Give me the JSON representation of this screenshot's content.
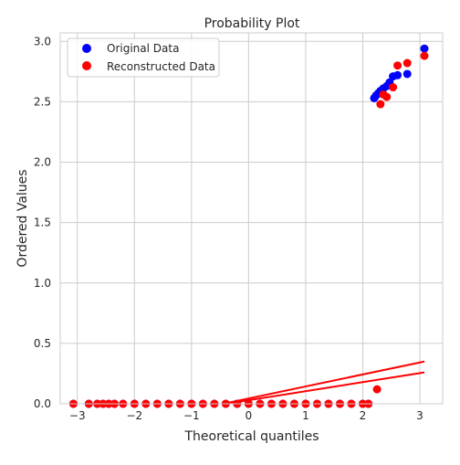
{
  "chart_data": {
    "type": "scatter",
    "title": "Probability Plot",
    "xlabel": "Theoretical quantiles",
    "ylabel": "Ordered Values",
    "xlim": [
      -3.3,
      3.4
    ],
    "ylim": [
      0,
      3.07
    ],
    "x_ticks": [
      -3,
      -2,
      -1,
      0,
      1,
      2,
      3
    ],
    "x_tick_labels": [
      "−3",
      "−2",
      "−1",
      "0",
      "1",
      "2",
      "3"
    ],
    "y_ticks": [
      0,
      0.5,
      1.0,
      1.5,
      2.0,
      2.5,
      3.0
    ],
    "y_tick_labels": [
      "0.0",
      "0.5",
      "1.0",
      "1.5",
      "2.0",
      "2.5",
      "3.0"
    ],
    "grid": true,
    "legend_position": "top-left",
    "series": [
      {
        "name": "Original Data",
        "color": "#0000ff",
        "points": [
          [
            -3.07,
            0.0
          ],
          [
            -2.8,
            0.0
          ],
          [
            -2.65,
            0.0
          ],
          [
            -2.55,
            0.0
          ],
          [
            -2.45,
            0.0
          ],
          [
            -2.35,
            0.0
          ],
          [
            -2.2,
            0.0
          ],
          [
            -2.0,
            0.0
          ],
          [
            -1.8,
            0.0
          ],
          [
            -1.6,
            0.0
          ],
          [
            -1.4,
            0.0
          ],
          [
            -1.2,
            0.0
          ],
          [
            -1.0,
            0.0
          ],
          [
            -0.8,
            0.0
          ],
          [
            -0.6,
            0.0
          ],
          [
            -0.4,
            0.0
          ],
          [
            -0.2,
            0.0
          ],
          [
            0.0,
            0.0
          ],
          [
            0.2,
            0.0
          ],
          [
            0.4,
            0.0
          ],
          [
            0.6,
            0.0
          ],
          [
            0.8,
            0.0
          ],
          [
            1.0,
            0.0
          ],
          [
            1.2,
            0.0
          ],
          [
            1.4,
            0.0
          ],
          [
            1.6,
            0.0
          ],
          [
            1.8,
            0.0
          ],
          [
            2.0,
            0.0
          ],
          [
            2.1,
            0.0
          ],
          [
            2.2,
            2.53
          ],
          [
            2.23,
            2.55
          ],
          [
            2.27,
            2.57
          ],
          [
            2.31,
            2.59
          ],
          [
            2.36,
            2.61
          ],
          [
            2.42,
            2.63
          ],
          [
            2.47,
            2.66
          ],
          [
            2.53,
            2.71
          ],
          [
            2.61,
            2.72
          ],
          [
            2.78,
            2.73
          ],
          [
            3.08,
            2.94
          ]
        ]
      },
      {
        "name": "Reconstructed Data",
        "color": "#ff0000",
        "points": [
          [
            -3.07,
            0.0
          ],
          [
            -2.8,
            0.0
          ],
          [
            -2.65,
            0.0
          ],
          [
            -2.55,
            0.0
          ],
          [
            -2.45,
            0.0
          ],
          [
            -2.35,
            0.0
          ],
          [
            -2.2,
            0.0
          ],
          [
            -2.0,
            0.0
          ],
          [
            -1.8,
            0.0
          ],
          [
            -1.6,
            0.0
          ],
          [
            -1.4,
            0.0
          ],
          [
            -1.2,
            0.0
          ],
          [
            -1.0,
            0.0
          ],
          [
            -0.8,
            0.0
          ],
          [
            -0.6,
            0.0
          ],
          [
            -0.4,
            0.0
          ],
          [
            -0.2,
            0.0
          ],
          [
            0.0,
            0.0
          ],
          [
            0.2,
            0.0
          ],
          [
            0.4,
            0.0
          ],
          [
            0.6,
            0.0
          ],
          [
            0.8,
            0.0
          ],
          [
            1.0,
            0.0
          ],
          [
            1.2,
            0.0
          ],
          [
            1.4,
            0.0
          ],
          [
            1.6,
            0.0
          ],
          [
            1.8,
            0.0
          ],
          [
            2.0,
            0.0
          ],
          [
            2.1,
            0.0
          ],
          [
            2.25,
            0.12
          ],
          [
            2.31,
            2.48
          ],
          [
            2.36,
            2.56
          ],
          [
            2.42,
            2.54
          ],
          [
            2.53,
            2.62
          ],
          [
            2.61,
            2.8
          ],
          [
            2.78,
            2.82
          ],
          [
            3.08,
            2.88
          ]
        ]
      }
    ],
    "fit_lines": [
      {
        "color": "#ff0000",
        "x": [
          -3.07,
          3.08
        ],
        "y": [
          -0.26,
          0.35
        ]
      },
      {
        "color": "#ff0000",
        "x": [
          -3.07,
          3.08
        ],
        "y": [
          -0.2,
          0.26
        ]
      }
    ]
  }
}
